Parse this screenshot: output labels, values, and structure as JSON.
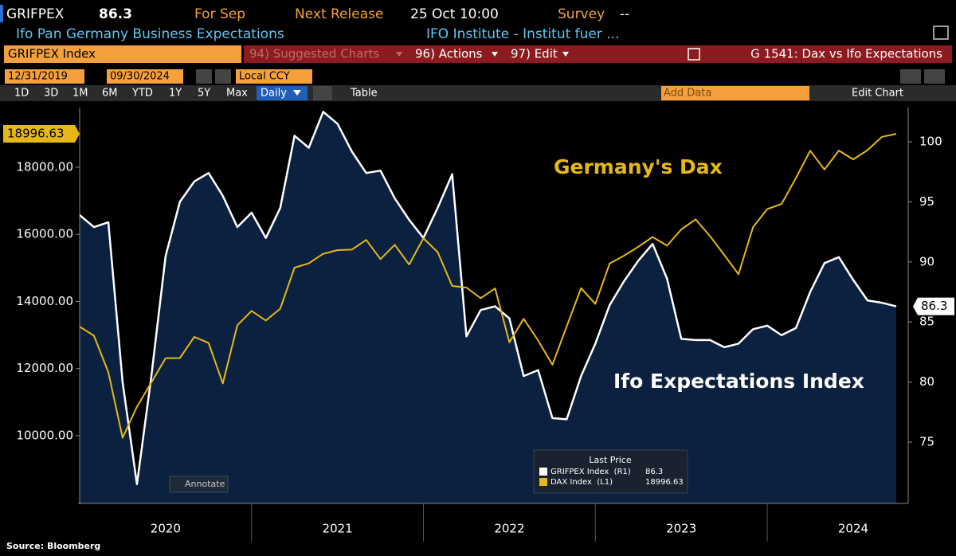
{
  "header": {
    "ticker": "GRIFPEX",
    "for_label": "For Sep",
    "release_label": "Next Release",
    "release": "25 Oct 10:00",
    "survey_label": "Survey",
    "survey": "--",
    "description": "Ifo Pan Germany Business Expectations",
    "source": "IFO Institute - Institut fuer ..."
  },
  "toolbar": {
    "security": "GRIFPEX Index",
    "menus": [
      "94) Suggested Charts",
      "96) Actions",
      "97) Edit"
    ],
    "chart_name": "G 1541: Dax vs Ifo Expectations",
    "start_date": "12/31/2019",
    "end_date": "09/30/2024",
    "currency": "Local CCY",
    "periods": [
      "1D",
      "3D",
      "1M",
      "6M",
      "YTD",
      "1Y",
      "5Y",
      "Max"
    ],
    "frequency": "Daily",
    "table": "Table",
    "add_data": "Add Data",
    "edit_chart": "Edit Chart"
  },
  "chart_data": {
    "type": "line",
    "x": [
      2020,
      2020.083,
      2020.167,
      2020.25,
      2020.333,
      2020.417,
      2020.5,
      2020.583,
      2020.667,
      2020.75,
      2020.833,
      2020.917,
      2021,
      2021.083,
      2021.167,
      2021.25,
      2021.333,
      2021.417,
      2021.5,
      2021.583,
      2021.667,
      2021.75,
      2021.833,
      2021.917,
      2022,
      2022.083,
      2022.167,
      2022.25,
      2022.333,
      2022.417,
      2022.5,
      2022.583,
      2022.667,
      2022.75,
      2022.833,
      2022.917,
      2023,
      2023.083,
      2023.167,
      2023.25,
      2023.333,
      2023.417,
      2023.5,
      2023.583,
      2023.667,
      2023.75,
      2023.833,
      2023.917,
      2024,
      2024.083,
      2024.167,
      2024.25,
      2024.333,
      2024.417,
      2024.5,
      2024.583,
      2024.667,
      2024.75
    ],
    "series": [
      {
        "name": "GRIFPEX Index  (R1)",
        "color": "#ffffff",
        "area_color": "#0c2140",
        "axis": "y2",
        "values": [
          93.9,
          92.9,
          93.3,
          80.0,
          71.5,
          80.5,
          90.5,
          95.0,
          96.7,
          97.4,
          95.5,
          92.9,
          94.1,
          92.0,
          94.5,
          100.5,
          99.5,
          102.5,
          101.5,
          99.2,
          97.4,
          97.6,
          95.3,
          93.5,
          92.0,
          94.5,
          97.3,
          83.8,
          86.0,
          86.3,
          85.3,
          80.5,
          81.0,
          77.0,
          76.9,
          80.5,
          83.2,
          86.4,
          88.4,
          90.1,
          91.5,
          88.6,
          83.6,
          83.5,
          83.5,
          82.9,
          83.2,
          84.4,
          84.7,
          83.9,
          84.5,
          87.5,
          89.9,
          90.4,
          88.5,
          86.8,
          86.6,
          86.3
        ]
      },
      {
        "name": "DAX Index  (L1)",
        "color": "#e6b817",
        "axis": "y",
        "values": [
          13249,
          12981,
          11890,
          9936,
          10862,
          11587,
          12311,
          12313,
          12945,
          12761,
          11556,
          13291,
          13719,
          13432,
          13786,
          15008,
          15136,
          15421,
          15531,
          15544,
          15835,
          15261,
          15689,
          15100,
          15885,
          15471,
          14461,
          14415,
          14098,
          14388,
          12784,
          13484,
          12835,
          12114,
          13253,
          14397,
          13924,
          15128,
          15365,
          15629,
          15922,
          15664,
          16148,
          16447,
          15947,
          15387,
          14810,
          16215,
          16752,
          16904,
          17678,
          18492,
          17932,
          18498,
          18235,
          18509,
          18907,
          18996.63
        ]
      }
    ],
    "xlim": [
      2020,
      2024.82
    ],
    "xticks": [
      {
        "value": 2020.5,
        "label": "2020"
      },
      {
        "value": 2021.5,
        "label": "2021"
      },
      {
        "value": 2022.5,
        "label": "2022"
      },
      {
        "value": 2023.5,
        "label": "2023"
      },
      {
        "value": 2024.5,
        "label": "2024"
      }
    ],
    "ylim": [
      7980,
      19780
    ],
    "yticks": [
      {
        "value": 10000,
        "label": "10000.00"
      },
      {
        "value": 12000,
        "label": "12000.00"
      },
      {
        "value": 14000,
        "label": "14000.00"
      },
      {
        "value": 16000,
        "label": "16000.00"
      },
      {
        "value": 18000,
        "label": "18000.00"
      }
    ],
    "y2lim": [
      69.9,
      102.85
    ],
    "y2ticks": [
      75,
      80,
      85,
      90,
      95,
      100
    ],
    "grid": false,
    "annotations": [
      "Germany's Dax",
      "Ifo Expectations Index"
    ],
    "legend_title": "Last Price",
    "annotate": "Annotate",
    "source": "Source: Bloomberg"
  }
}
